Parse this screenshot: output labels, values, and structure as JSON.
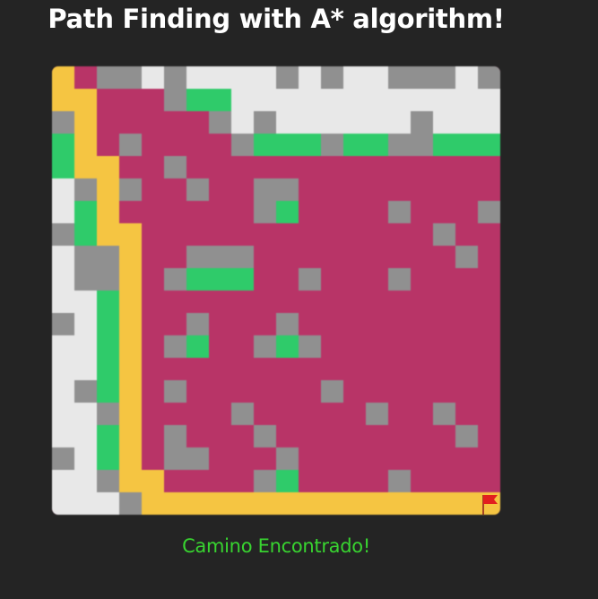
{
  "header": {
    "title": "Path Finding with A* algorithm!"
  },
  "status": {
    "text": "Camino Encontrado!"
  },
  "colors": {
    "background": "#242424",
    "unvisited": "#e8e8e8",
    "wall": "#909090",
    "frontier": "#2fcb6a",
    "visited": "#b83467",
    "path": "#f5c542",
    "flag": "#e21f1f"
  },
  "grid": {
    "rows": 20,
    "cols": 20,
    "legend": {
      "W": "unvisited",
      "G": "wall",
      "N": "frontier",
      "M": "visited",
      "Y": "path"
    },
    "cells": [
      "YMGGWGWWWWGWGWWGGGWG",
      "YYMMMGNNWWWWWWWWWWWW",
      "GYMMMMMGWGWWWWWWGWWW",
      "NYMGMMMMGNNNGNNGGNNN",
      "NYYMMGMMMMMMMMMMMMMM",
      "WGYGMMGMMGGMMMMMMMMM",
      "WNYMMMMMMGNMMMMGMMMG",
      "GNYYMMMMMMMMMMMMMGMM",
      "WGGYMMGGGMMMMMMMMMGM",
      "WGGYMGNNNMMGMMMGMMMM",
      "WWNYMMMMMMMMMMMMMMMM",
      "GWNYMMGMMMGMMMMMMMMM",
      "WWNYMGNMMGNGMMMMMMMM",
      "WWNYMMMMMMMMMMMMMMMM",
      "WGNYMGMMMMMMGMMMMMMM",
      "WWGYMMMMGMMMMMGMMGMM",
      "WWNYMGMMMGMMMMMMMMGM",
      "GWNYMGGMMMGMMMMMMMMM",
      "WWGYYMMMMGNMMMMGMMMM",
      "WWWGYYYYYYYYYYYYYYYY"
    ],
    "goal": {
      "row": 19,
      "col": 19,
      "icon": "flag-icon"
    }
  }
}
